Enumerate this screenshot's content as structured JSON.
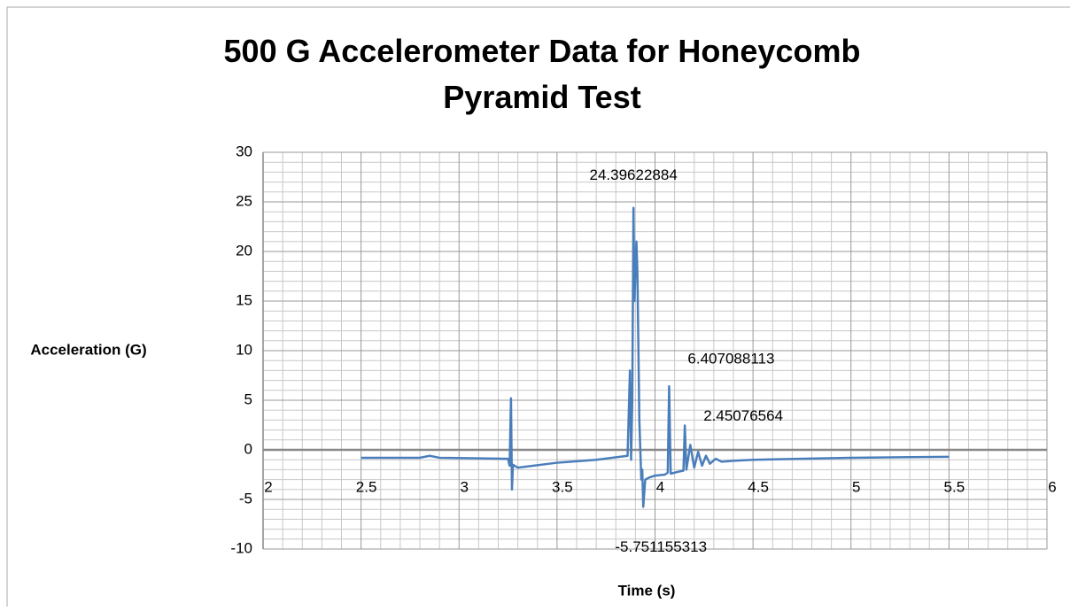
{
  "chart_data": {
    "type": "line",
    "title": "500 G Accelerometer Data for Honeycomb Pyramid Test",
    "xlabel": "Time (s)",
    "ylabel": "Acceleration (G)",
    "xlim": [
      2,
      6
    ],
    "ylim": [
      -10,
      30
    ],
    "xticks": [
      2,
      2.5,
      3,
      3.5,
      4,
      4.5,
      5,
      5.5,
      6
    ],
    "yticks": [
      -10,
      -5,
      0,
      5,
      10,
      15,
      20,
      25,
      30
    ],
    "grid": true,
    "minor_grid": true,
    "series": [
      {
        "color": "#4a7ebb",
        "x": [
          2.5,
          2.8,
          2.85,
          2.9,
          3.25,
          3.258,
          3.265,
          3.27,
          3.275,
          3.3,
          3.5,
          3.7,
          3.86,
          3.872,
          3.878,
          3.884,
          3.89,
          3.895,
          3.905,
          3.91,
          3.92,
          3.93,
          3.935,
          3.94,
          3.95,
          3.97,
          4.0,
          4.05,
          4.065,
          4.072,
          4.08,
          4.12,
          4.145,
          4.152,
          4.16,
          4.18,
          4.2,
          4.22,
          4.24,
          4.26,
          4.28,
          4.31,
          4.34,
          4.4,
          4.5,
          5.0,
          5.5
        ],
        "values": [
          -0.8,
          -0.8,
          -0.6,
          -0.8,
          -0.9,
          -1.6,
          5.2,
          -4,
          -1.5,
          -1.8,
          -1.3,
          -1.0,
          -0.6,
          8,
          -1,
          5,
          24.39622884,
          15,
          21,
          18,
          3,
          -3,
          -2,
          -5.751155313,
          -3,
          -2.8,
          -2.6,
          -2.5,
          -2.3,
          6.407088113,
          -2.4,
          -2.2,
          -2.1,
          2.45076564,
          -2,
          0.5,
          -1.8,
          -0.2,
          -1.6,
          -0.6,
          -1.4,
          -0.9,
          -1.2,
          -1.1,
          -1.0,
          -0.8,
          -0.7
        ]
      }
    ],
    "point_labels": [
      {
        "x": 3.89,
        "y": 24.39622884
      },
      {
        "x": 4.072,
        "y": 6.407088113
      },
      {
        "x": 4.152,
        "y": 2.45076564
      },
      {
        "x": 3.94,
        "y": -5.751155313
      }
    ]
  }
}
